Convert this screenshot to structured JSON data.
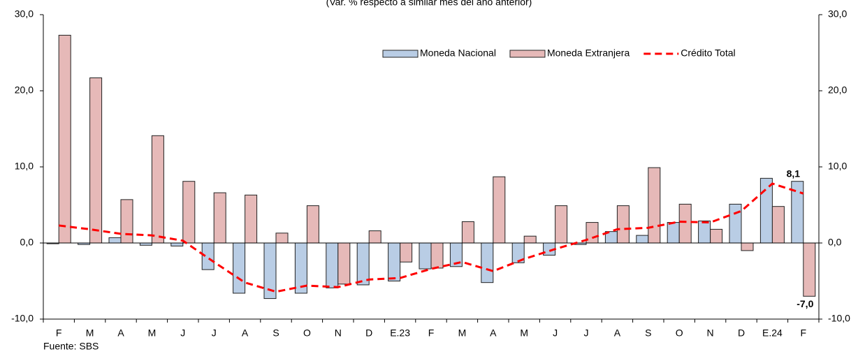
{
  "chart_data": {
    "type": "bar-line",
    "title": "(Var. % respecto a similar mes del año anterior)",
    "source": "Fuente: SBS",
    "categories": [
      "F",
      "M",
      "A",
      "M",
      "J",
      "J",
      "A",
      "S",
      "O",
      "N",
      "D",
      "E.23",
      "F",
      "M",
      "A",
      "M",
      "J",
      "J",
      "A",
      "S",
      "O",
      "N",
      "D",
      "E.24",
      "F"
    ],
    "series": [
      {
        "name": "Moneda Nacional",
        "kind": "bar",
        "color": "#b9cde5",
        "values": [
          -0.1,
          -0.2,
          0.7,
          -0.3,
          -0.4,
          -3.5,
          -6.6,
          -7.3,
          -6.6,
          -5.9,
          -5.5,
          -5.0,
          -3.4,
          -3.1,
          -5.2,
          -2.6,
          -1.6,
          -0.2,
          1.5,
          1.0,
          2.7,
          2.9,
          5.1,
          8.5,
          8.1
        ],
        "value_labels": [
          null,
          null,
          null,
          null,
          null,
          null,
          null,
          null,
          null,
          null,
          null,
          null,
          null,
          null,
          null,
          null,
          null,
          null,
          null,
          null,
          null,
          null,
          null,
          null,
          "8,1"
        ]
      },
      {
        "name": "Moneda Extranjera",
        "kind": "bar",
        "color": "#e6b9b8",
        "values": [
          27.3,
          21.7,
          5.7,
          14.1,
          8.1,
          6.6,
          6.3,
          1.3,
          4.9,
          -5.4,
          1.6,
          -2.5,
          -3.3,
          2.8,
          8.7,
          0.9,
          4.9,
          2.7,
          4.9,
          9.9,
          5.1,
          1.8,
          -1.0,
          4.8,
          -7.0
        ],
        "value_labels": [
          null,
          null,
          null,
          null,
          null,
          null,
          null,
          null,
          null,
          null,
          null,
          null,
          null,
          null,
          null,
          null,
          null,
          null,
          null,
          null,
          null,
          null,
          null,
          null,
          "-7,0"
        ]
      },
      {
        "name": "Crédito Total",
        "kind": "line",
        "color": "#ff0000",
        "values": [
          2.3,
          1.8,
          1.2,
          1.0,
          0.3,
          -2.5,
          -5.2,
          -6.4,
          -5.6,
          -5.8,
          -4.8,
          -4.6,
          -3.4,
          -2.5,
          -3.7,
          -2.1,
          -0.8,
          0.4,
          1.8,
          2.0,
          2.8,
          2.7,
          4.2,
          7.8,
          6.5
        ]
      }
    ],
    "ylim": [
      -10,
      30
    ],
    "yticks": [
      {
        "value": -10,
        "label": "-10,0"
      },
      {
        "value": 0,
        "label": "0,0"
      },
      {
        "value": 10,
        "label": "10,0"
      },
      {
        "value": 20,
        "label": "20,0"
      },
      {
        "value": 30,
        "label": "30,0"
      }
    ],
    "y2lim": [
      -10,
      30
    ],
    "y2ticks": [
      {
        "value": -10,
        "label": "-10,0"
      },
      {
        "value": 0,
        "label": "0,0"
      },
      {
        "value": 10,
        "label": "10,0"
      },
      {
        "value": 20,
        "label": "20,0"
      },
      {
        "value": 30,
        "label": "30,0"
      }
    ],
    "legend": "upper right",
    "grid": false
  }
}
